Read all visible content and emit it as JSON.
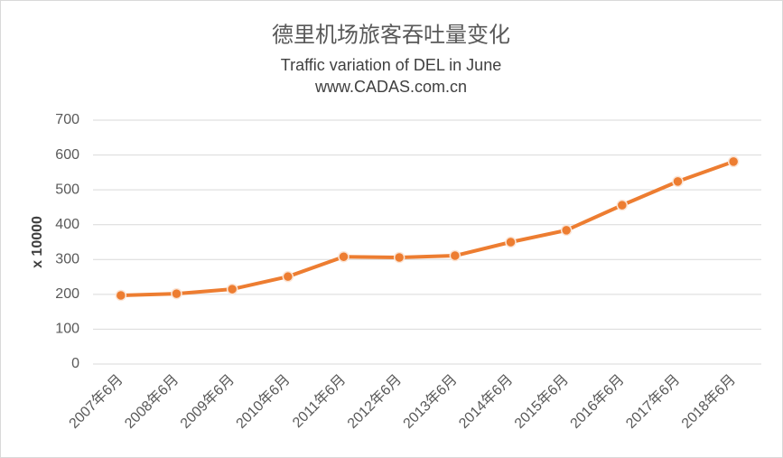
{
  "chart_data": {
    "type": "line",
    "title": "德里机场旅客吞吐量变化",
    "subtitle": "Traffic variation of DEL in June",
    "url": "www.CADAS.com.cn",
    "y_label": "x 10000",
    "categories": [
      "2007年6月",
      "2008年6月",
      "2009年6月",
      "2010年6月",
      "2011年6月",
      "2012年6月",
      "2013年6月",
      "2014年6月",
      "2015年6月",
      "2016年6月",
      "2017年6月",
      "2018年6月"
    ],
    "series": [
      {
        "name": "DEL",
        "color": "#ed7d31",
        "values": [
          197,
          202,
          215,
          251,
          308,
          306,
          311,
          350,
          384,
          456,
          524,
          581
        ]
      }
    ],
    "ylim": [
      0,
      700
    ],
    "yticks": [
      0,
      100,
      200,
      300,
      400,
      500,
      600,
      700
    ],
    "grid": true
  }
}
